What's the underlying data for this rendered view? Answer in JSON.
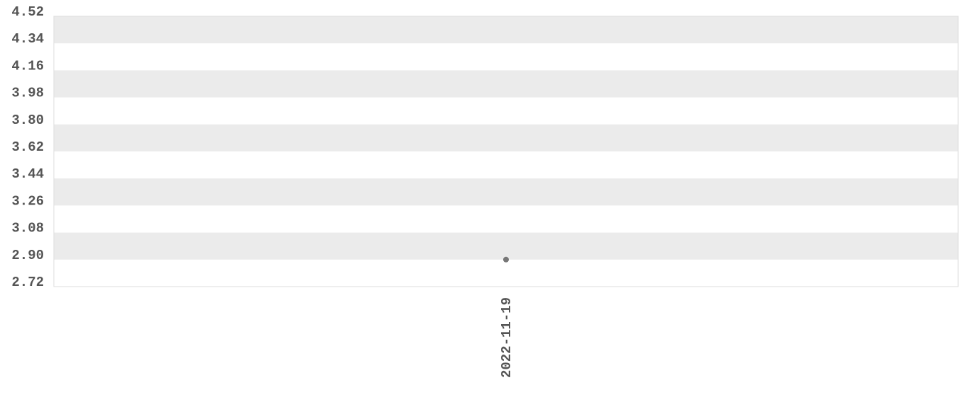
{
  "chart_data": {
    "type": "scatter",
    "title": "",
    "xlabel": "",
    "ylabel": "",
    "ylim": [
      2.72,
      4.52
    ],
    "y_ticks": [
      "4.52",
      "4.34",
      "4.16",
      "3.98",
      "3.80",
      "3.62",
      "3.44",
      "3.26",
      "3.08",
      "2.90",
      "2.72"
    ],
    "x_categories": [
      "2022-11-19"
    ],
    "points": [
      {
        "x": "2022-11-19",
        "y": 2.9
      }
    ],
    "grid": "alternating horizontal bands",
    "colors": {
      "band": "#ebebeb",
      "point": "#777777",
      "text": "#555555",
      "border": "#dddddd"
    }
  }
}
